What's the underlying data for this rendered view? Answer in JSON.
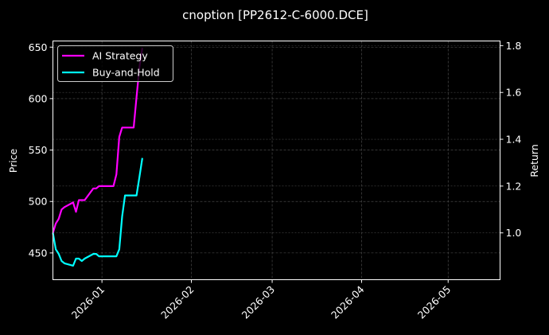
{
  "chart_data": {
    "type": "line",
    "title": "cnoption [PP2612-C-6000.DCE]",
    "xlabel": "",
    "ylabel": "Price",
    "ylabel_right": "Return",
    "ylim": [
      424,
      656
    ],
    "ylim_right": [
      0.8,
      1.82
    ],
    "grid": true,
    "legend_position": "upper left",
    "x_ticks": [
      "2026-01",
      "2026-02",
      "2026-03",
      "2026-04",
      "2026-05"
    ],
    "y_ticks": [
      450,
      500,
      550,
      600,
      650
    ],
    "y_ticks_right": [
      1.0,
      1.2,
      1.4,
      1.6,
      1.8
    ],
    "x_range": [
      "2025-12-15",
      "2026-05-19"
    ],
    "series": [
      {
        "name": "AI Strategy",
        "axis": "right",
        "color": "#ff00ff",
        "x": [
          "2025-12-15",
          "2025-12-16",
          "2025-12-17",
          "2025-12-18",
          "2025-12-19",
          "2025-12-22",
          "2025-12-23",
          "2025-12-24",
          "2025-12-25",
          "2025-12-26",
          "2025-12-29",
          "2025-12-30",
          "2025-12-31",
          "2026-01-02",
          "2026-01-05",
          "2026-01-06",
          "2026-01-07",
          "2026-01-08",
          "2026-01-09",
          "2026-01-12",
          "2026-01-13",
          "2026-01-14",
          "2026-01-15"
        ],
        "values": [
          1.0,
          1.04,
          1.06,
          1.1,
          1.11,
          1.13,
          1.09,
          1.14,
          1.14,
          1.14,
          1.19,
          1.19,
          1.2,
          1.2,
          1.2,
          1.25,
          1.41,
          1.45,
          1.45,
          1.45,
          1.58,
          1.71,
          1.79
        ]
      },
      {
        "name": "Buy-and-Hold",
        "axis": "right",
        "color": "#00ffff",
        "x": [
          "2025-12-15",
          "2025-12-16",
          "2025-12-17",
          "2025-12-18",
          "2025-12-19",
          "2025-12-22",
          "2025-12-23",
          "2025-12-24",
          "2025-12-25",
          "2025-12-26",
          "2025-12-29",
          "2025-12-30",
          "2025-12-31",
          "2026-01-02",
          "2026-01-05",
          "2026-01-06",
          "2026-01-07",
          "2026-01-08",
          "2026-01-09",
          "2026-01-12",
          "2026-01-13",
          "2026-01-14",
          "2026-01-15"
        ],
        "values": [
          1.0,
          0.93,
          0.91,
          0.88,
          0.87,
          0.86,
          0.89,
          0.89,
          0.88,
          0.89,
          0.91,
          0.91,
          0.9,
          0.9,
          0.9,
          0.9,
          0.93,
          1.07,
          1.16,
          1.16,
          1.16,
          1.24,
          1.32
        ]
      }
    ]
  },
  "legend": {
    "items": [
      {
        "label": "AI Strategy",
        "color": "#ff00ff"
      },
      {
        "label": "Buy-and-Hold",
        "color": "#00ffff"
      }
    ]
  }
}
